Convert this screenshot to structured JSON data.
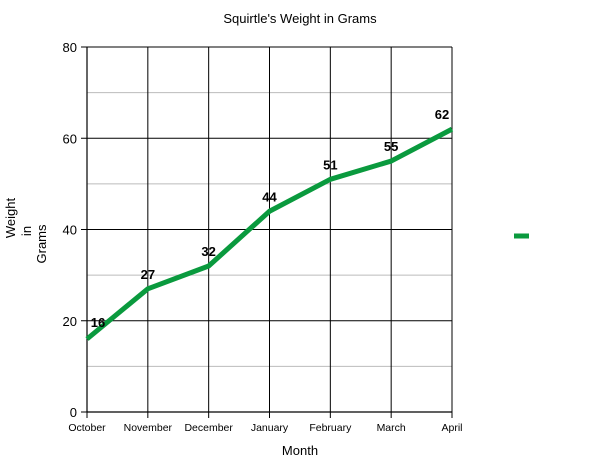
{
  "chart_data": {
    "type": "line",
    "title": "Squirtle's Weight in Grams",
    "xlabel": "Month",
    "ylabel": [
      "Weight",
      "in",
      "Grams"
    ],
    "categories": [
      "October",
      "November",
      "December",
      "January",
      "February",
      "March",
      "April"
    ],
    "series": [
      {
        "values": [
          16,
          27,
          32,
          44,
          51,
          55,
          62
        ],
        "color": "#0a9a3e"
      }
    ],
    "ylim": [
      0,
      80
    ],
    "y_ticks": [
      0,
      20,
      40,
      60,
      80
    ],
    "minor_grid_step": 10,
    "grid": true,
    "legend": "right"
  }
}
